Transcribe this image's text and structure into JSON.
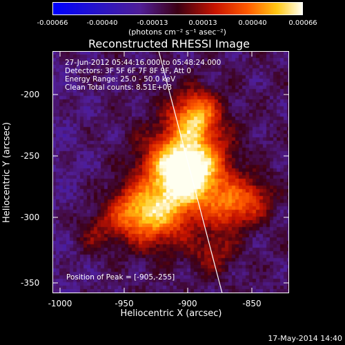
{
  "colorbar": {
    "tick_labels": [
      "-0.00066",
      "-0.00040",
      "-0.00013",
      "0.00013",
      "0.00040",
      "0.00066"
    ],
    "unit_label": "(photons cm⁻² s⁻¹ asec⁻²)",
    "min": -0.00066,
    "max": 0.00066
  },
  "image": {
    "title": "Reconstructed RHESSI Image",
    "info_line1": "27-Jun-2012 05:44:16.000 to 05:48:24.000",
    "info_line2": "Detectors: 3F 5F 6F 7F 8F 9F, Att 0",
    "info_line3": "Energy Range: 25.0 - 50.0 keV",
    "info_line4": "Clean    Total counts: 8.51E+03",
    "peak_label": "Position of Peak = [-905,-255]",
    "x_axis_label": "Heliocentric X (arcsec)",
    "y_axis_label": "Heliocentric Y (arcsec)",
    "x_tick_labels": [
      "-1000",
      "-950",
      "-900",
      "-850"
    ],
    "y_tick_labels": [
      "-200",
      "-250",
      "-300",
      "-350"
    ],
    "x_range": [
      -1010,
      -815
    ],
    "y_range": [
      -172,
      -372
    ],
    "peak_position": [
      -905,
      -255
    ],
    "limb_color": "#ffffff"
  },
  "footer": {
    "date": "17-May-2014 14:40"
  }
}
